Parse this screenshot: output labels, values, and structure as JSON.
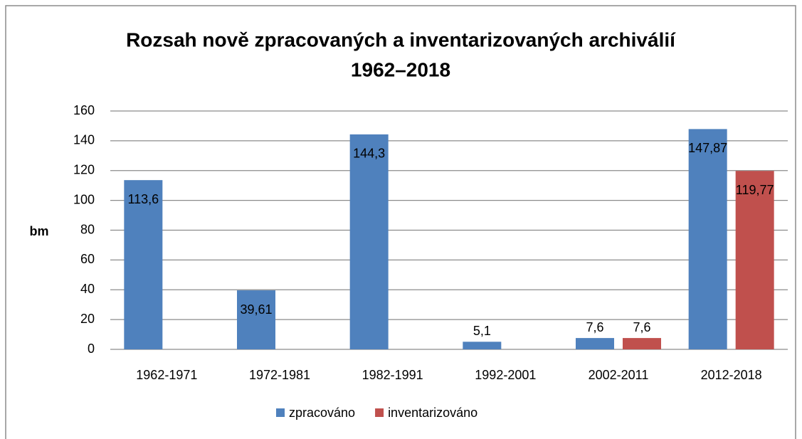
{
  "chart_data": {
    "type": "bar",
    "title": [
      "Rozsah nově zpracovaných a inventarizovaných archiválií",
      "1962–2018"
    ],
    "y_label": "bm",
    "categories": [
      "1962-1971",
      "1972-1981",
      "1982-1991",
      "1992-2001",
      "2002-2011",
      "2012-2018"
    ],
    "series": [
      {
        "name": "zpracováno",
        "color": "#4f81bd",
        "values": [
          113.6,
          39.61,
          144.3,
          5.1,
          7.6,
          147.87
        ],
        "value_labels": [
          "113,6",
          "39,61",
          "144,3",
          "5,1",
          "7,6",
          "147,87"
        ]
      },
      {
        "name": "inventarizováno",
        "color": "#c0504d",
        "values": [
          null,
          null,
          null,
          null,
          7.6,
          119.77
        ],
        "value_labels": [
          null,
          null,
          null,
          null,
          "7,6",
          "119,77"
        ]
      }
    ],
    "ylim": [
      0,
      160
    ],
    "yticks": [
      0,
      20,
      40,
      60,
      80,
      100,
      120,
      140,
      160
    ],
    "grid": true,
    "legend": "bottom"
  }
}
